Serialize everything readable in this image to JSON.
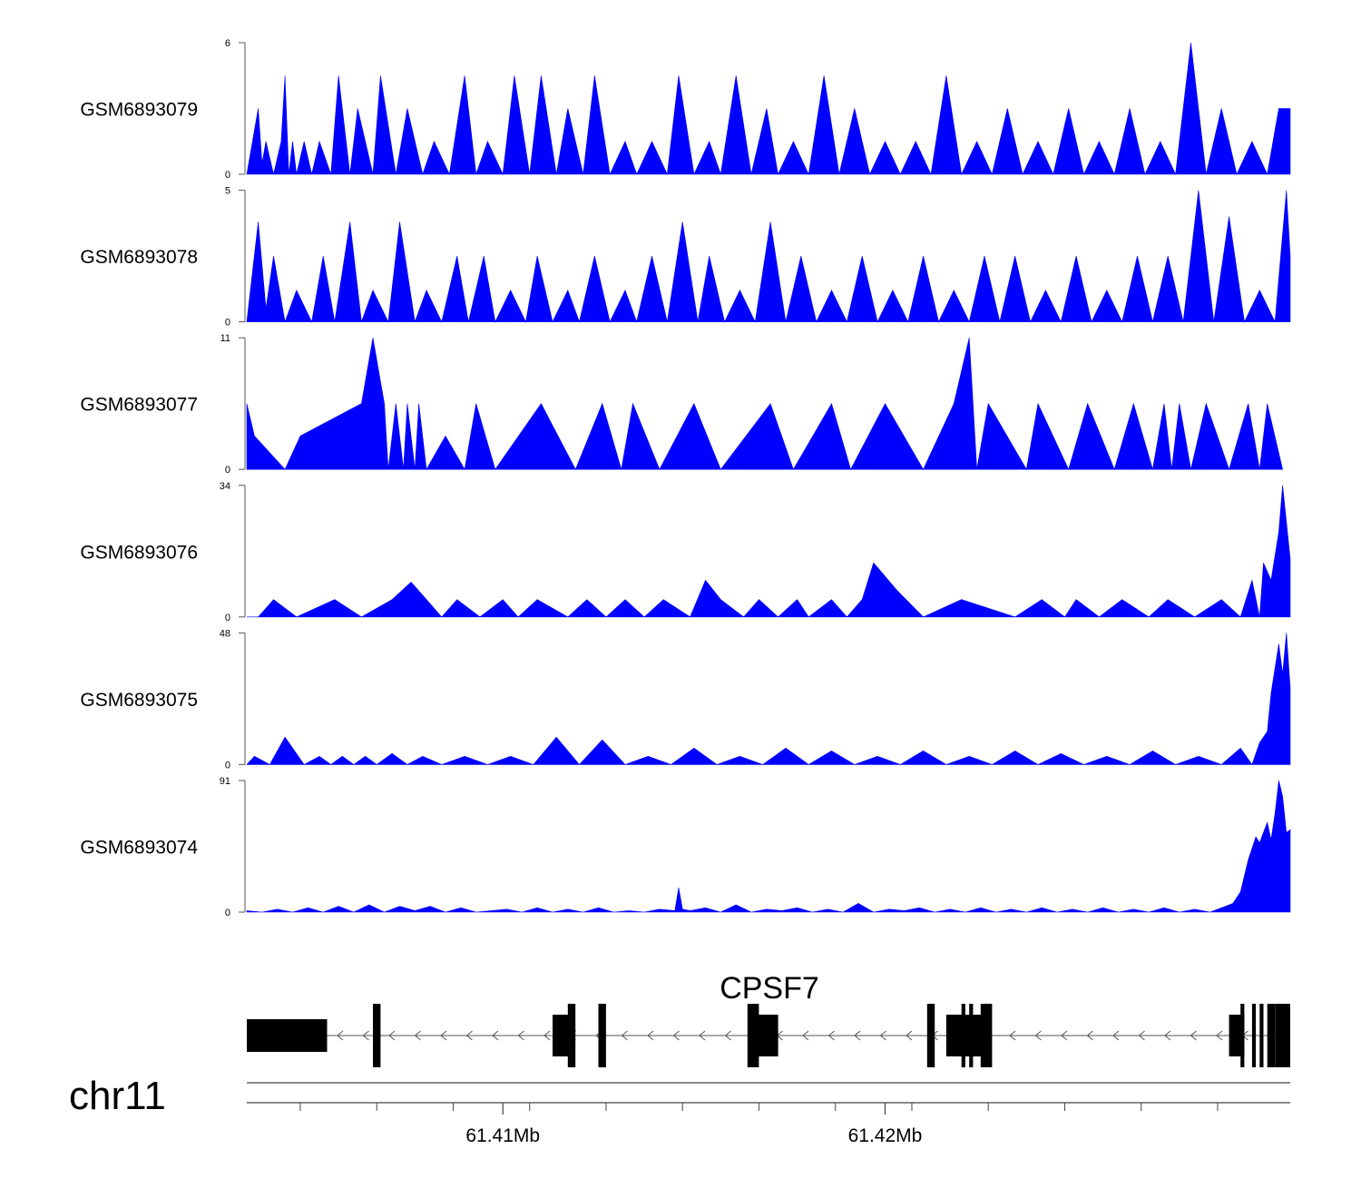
{
  "chart_data": {
    "type": "area",
    "chromosome": "chr11",
    "x_range_mb": [
      61.4033,
      61.4306
    ],
    "x_ticks_labeled": [
      {
        "value": 61.41,
        "label": "61.41Mb"
      },
      {
        "value": 61.42,
        "label": "61.42Mb"
      }
    ],
    "x_ticks_minor_mb": [
      61.4047,
      61.4067,
      61.4087,
      61.4107,
      61.4127,
      61.4147,
      61.4167,
      61.4187,
      61.4207,
      61.4227,
      61.4247,
      61.4267,
      61.4287
    ],
    "fill_color": "#0000ff",
    "tracks": [
      {
        "name": "GSM6893079",
        "ymax": 6,
        "ymin": 0,
        "x": [
          61.4033,
          61.4036,
          61.4037,
          61.4038,
          61.404,
          61.4042,
          61.4043,
          61.4044,
          61.4045,
          61.4046,
          61.4048,
          61.405,
          61.4052,
          61.4055,
          61.4057,
          61.406,
          61.4062,
          61.4066,
          61.4068,
          61.4072,
          61.4075,
          61.4079,
          61.4082,
          61.4086,
          61.409,
          61.4093,
          61.4096,
          61.41,
          61.4103,
          61.4107,
          61.411,
          61.4114,
          61.4117,
          61.4121,
          61.4124,
          61.4128,
          61.4132,
          61.4135,
          61.4139,
          61.4143,
          61.4146,
          61.415,
          61.4154,
          61.4157,
          61.4161,
          61.4165,
          61.4169,
          61.4172,
          61.4176,
          61.418,
          61.4184,
          61.4188,
          61.4192,
          61.4196,
          61.42,
          61.4204,
          61.4208,
          61.4212,
          61.4216,
          61.422,
          61.4224,
          61.4228,
          61.4232,
          61.4236,
          61.424,
          61.4244,
          61.4248,
          61.4252,
          61.4256,
          61.426,
          61.4264,
          61.4268,
          61.4272,
          61.4276,
          61.428,
          61.4284,
          61.4288,
          61.4292,
          61.4296,
          61.43,
          61.4303,
          61.4306
        ],
        "y": [
          0,
          3,
          0.5,
          1.5,
          0,
          1.5,
          4.5,
          0,
          1.5,
          0,
          1.5,
          0,
          1.5,
          0,
          4.5,
          0,
          3,
          0,
          4.5,
          0,
          3,
          0,
          1.5,
          0,
          4.5,
          0,
          1.5,
          0,
          4.5,
          0,
          4.5,
          0,
          3,
          0,
          4.5,
          0,
          1.5,
          0,
          1.5,
          0,
          4.5,
          0,
          1.5,
          0,
          4.5,
          0,
          3,
          0,
          1.5,
          0,
          4.5,
          0,
          3,
          0,
          1.5,
          0,
          1.5,
          0,
          4.5,
          0,
          1.5,
          0,
          3,
          0,
          1.5,
          0,
          3,
          0,
          1.5,
          0,
          3,
          0,
          1.5,
          0,
          6,
          0,
          3,
          0,
          1.5,
          0,
          3,
          3
        ]
      },
      {
        "name": "GSM6893078",
        "ymax": 5,
        "ymin": 0,
        "x": [
          61.4033,
          61.4036,
          61.4038,
          61.404,
          61.4043,
          61.4046,
          61.405,
          61.4053,
          61.4056,
          61.406,
          61.4063,
          61.4066,
          61.407,
          61.4073,
          61.4077,
          61.408,
          61.4084,
          61.4088,
          61.4091,
          61.4095,
          61.4098,
          61.4102,
          61.4106,
          61.4109,
          61.4113,
          61.4117,
          61.412,
          61.4124,
          61.4128,
          61.4132,
          61.4135,
          61.4139,
          61.4143,
          61.4147,
          61.4151,
          61.4154,
          61.4158,
          61.4162,
          61.4166,
          61.417,
          61.4174,
          61.4178,
          61.4182,
          61.4186,
          61.419,
          61.4194,
          61.4198,
          61.4202,
          61.4206,
          61.421,
          61.4214,
          61.4218,
          61.4222,
          61.4226,
          61.423,
          61.4234,
          61.4238,
          61.4242,
          61.4246,
          61.425,
          61.4254,
          61.4258,
          61.4262,
          61.4266,
          61.427,
          61.4274,
          61.4278,
          61.4282,
          61.4286,
          61.429,
          61.4294,
          61.4298,
          61.4302,
          61.4305,
          61.4306
        ],
        "y": [
          0,
          3.8,
          0.5,
          2.5,
          0,
          1.2,
          0,
          2.5,
          0,
          3.8,
          0,
          1.2,
          0,
          3.8,
          0,
          1.2,
          0,
          2.5,
          0,
          2.5,
          0,
          1.2,
          0,
          2.5,
          0,
          1.2,
          0,
          2.5,
          0,
          1.2,
          0,
          2.5,
          0,
          3.8,
          0,
          2.5,
          0,
          1.2,
          0,
          3.8,
          0,
          2.5,
          0,
          1.2,
          0,
          2.5,
          0,
          1.2,
          0,
          2.5,
          0,
          1.2,
          0,
          2.5,
          0,
          2.5,
          0,
          1.2,
          0,
          2.5,
          0,
          1.2,
          0,
          2.5,
          0,
          2.5,
          0,
          5,
          0,
          4,
          0,
          1.2,
          0,
          5,
          2.5
        ]
      },
      {
        "name": "GSM6893077",
        "ymax": 11,
        "ymin": 0,
        "x": [
          61.4033,
          61.4035,
          61.4043,
          61.4047,
          61.4063,
          61.4066,
          61.4069,
          61.407,
          61.4072,
          61.4074,
          61.4075,
          61.4077,
          61.4078,
          61.408,
          61.4085,
          61.409,
          61.4093,
          61.4098,
          61.411,
          61.4119,
          61.4126,
          61.4131,
          61.4134,
          61.4141,
          61.415,
          61.4157,
          61.417,
          61.4176,
          61.4186,
          61.4191,
          61.42,
          61.421,
          61.4218,
          61.4222,
          61.4224,
          61.4227,
          61.4237,
          61.424,
          61.4248,
          61.4253,
          61.426,
          61.4265,
          61.427,
          61.4273,
          61.4275,
          61.4277,
          61.428,
          61.4284,
          61.429,
          61.4295,
          61.4298,
          61.43,
          61.4304
        ],
        "y": [
          5.5,
          2.8,
          0,
          2.8,
          5.5,
          11,
          5.5,
          0,
          5.5,
          0,
          5.5,
          0,
          5.5,
          0,
          2.8,
          0,
          5.5,
          0,
          5.5,
          0,
          5.5,
          0,
          5.5,
          0,
          5.5,
          0,
          5.5,
          0,
          5.5,
          0,
          5.5,
          0,
          5.5,
          11,
          0,
          5.5,
          0,
          5.5,
          0,
          5.5,
          0,
          5.5,
          0,
          5.5,
          0,
          5.5,
          0,
          5.5,
          0,
          5.5,
          0,
          5.5,
          0
        ]
      },
      {
        "name": "GSM6893076",
        "ymax": 34,
        "ymin": 0,
        "x": [
          61.4033,
          61.4036,
          61.404,
          61.4046,
          61.4056,
          61.4063,
          61.4071,
          61.4076,
          61.408,
          61.4084,
          61.4088,
          61.4094,
          61.41,
          61.4104,
          61.4109,
          61.4117,
          61.4122,
          61.4127,
          61.4132,
          61.4137,
          61.4142,
          61.4149,
          61.4153,
          61.4157,
          61.4163,
          61.4167,
          61.4172,
          61.4177,
          61.418,
          61.4186,
          61.419,
          61.4194,
          61.4197,
          61.4203,
          61.421,
          61.422,
          61.4234,
          61.4241,
          61.4247,
          61.425,
          61.4256,
          61.4262,
          61.4269,
          61.4274,
          61.4281,
          61.4288,
          61.4293,
          61.4296,
          61.4298,
          61.4299,
          61.4301,
          61.4303,
          61.4304,
          61.4306
        ],
        "y": [
          0,
          0,
          4.5,
          0,
          4.5,
          0,
          4.5,
          9,
          4.5,
          0,
          4.5,
          0,
          4.5,
          0,
          4.5,
          0,
          4.5,
          0,
          4.5,
          0,
          4.5,
          0,
          9.5,
          4.5,
          0,
          4.5,
          0,
          4.5,
          0,
          4.5,
          0,
          4.5,
          14,
          7,
          0,
          4.5,
          0,
          4.5,
          0,
          4.5,
          0,
          4.5,
          0,
          4.5,
          0,
          4.5,
          0,
          9.5,
          0,
          14,
          9.5,
          22,
          34,
          15
        ]
      },
      {
        "name": "GSM6893075",
        "ymax": 48,
        "ymin": 0,
        "x": [
          61.4033,
          61.4035,
          61.4039,
          61.4043,
          61.4048,
          61.4052,
          61.4055,
          61.4058,
          61.4061,
          61.4064,
          61.4067,
          61.4071,
          61.4075,
          61.4079,
          61.4084,
          61.409,
          61.4096,
          61.4102,
          61.4108,
          61.4114,
          61.412,
          61.4126,
          61.4132,
          61.4138,
          61.4144,
          61.415,
          61.4156,
          61.4162,
          61.4168,
          61.4174,
          61.418,
          61.4186,
          61.4192,
          61.4198,
          61.4204,
          61.421,
          61.4216,
          61.4222,
          61.4228,
          61.4234,
          61.424,
          61.4246,
          61.4252,
          61.4258,
          61.4264,
          61.427,
          61.4276,
          61.4282,
          61.4288,
          61.4293,
          61.4296,
          61.4298,
          61.43,
          61.4301,
          61.4303,
          61.4304,
          61.4305,
          61.4306
        ],
        "y": [
          0,
          3,
          0,
          10,
          0,
          3,
          0,
          3,
          0,
          3,
          0,
          4,
          0,
          3,
          0,
          3,
          0,
          3,
          0,
          10,
          0,
          9,
          0,
          3,
          0,
          6,
          0,
          3,
          0,
          6,
          0,
          5,
          0,
          3,
          0,
          5,
          0,
          3,
          0,
          5,
          0,
          4,
          0,
          3,
          0,
          5,
          0,
          3,
          0,
          6,
          0,
          8,
          12,
          26,
          44,
          33,
          48,
          28
        ]
      },
      {
        "name": "GSM6893074",
        "ymax": 91,
        "ymin": 0,
        "x": [
          61.4033,
          61.4037,
          61.4041,
          61.4045,
          61.4049,
          61.4053,
          61.4057,
          61.4061,
          61.4065,
          61.4069,
          61.4073,
          61.4077,
          61.4081,
          61.4085,
          61.4089,
          61.4093,
          61.4097,
          61.4101,
          61.4105,
          61.4109,
          61.4113,
          61.4117,
          61.4121,
          61.4125,
          61.4129,
          61.4133,
          61.4137,
          61.4141,
          61.4145,
          61.4146,
          61.4147,
          61.4149,
          61.4153,
          61.4157,
          61.4161,
          61.4165,
          61.4169,
          61.4173,
          61.4177,
          61.4181,
          61.4185,
          61.4189,
          61.4193,
          61.4197,
          61.4201,
          61.4205,
          61.4209,
          61.4213,
          61.4217,
          61.4221,
          61.4225,
          61.4229,
          61.4233,
          61.4237,
          61.4241,
          61.4245,
          61.4249,
          61.4253,
          61.4257,
          61.4261,
          61.4265,
          61.4269,
          61.4273,
          61.4277,
          61.4281,
          61.4285,
          61.4289,
          61.4291,
          61.4293,
          61.4295,
          61.4297,
          61.4298,
          61.43,
          61.4301,
          61.4302,
          61.4303,
          61.4304,
          61.4305,
          61.4306
        ],
        "y": [
          1,
          0,
          2,
          0,
          3,
          0,
          4,
          0,
          5,
          0,
          4,
          1,
          4,
          0,
          3,
          0,
          1,
          2,
          0,
          3,
          0,
          2,
          0,
          3,
          0,
          1,
          0,
          2,
          1,
          17,
          2,
          1,
          3,
          0,
          5,
          0,
          2,
          1,
          3,
          0,
          2,
          0,
          6,
          0,
          2,
          1,
          3,
          0,
          2,
          0,
          3,
          0,
          2,
          0,
          3,
          0,
          2,
          0,
          3,
          0,
          2,
          0,
          3,
          0,
          2,
          0,
          4,
          6,
          14,
          36,
          52,
          48,
          62,
          50,
          68,
          91,
          80,
          55,
          57
        ]
      }
    ],
    "gene": {
      "name": "CPSF7",
      "strand": "-",
      "exons_mb": [
        [
          61.4033,
          61.4054
        ],
        [
          61.4066,
          61.4068
        ],
        [
          61.4113,
          61.4118
        ],
        [
          61.4117,
          61.4119
        ],
        [
          61.4125,
          61.4127
        ],
        [
          61.4164,
          61.4167
        ],
        [
          61.4166,
          61.4172
        ],
        [
          61.4211,
          61.4213
        ],
        [
          61.4216,
          61.4227
        ],
        [
          61.422,
          61.4221
        ],
        [
          61.4222,
          61.4223
        ],
        [
          61.4225,
          61.4228
        ],
        [
          61.429,
          61.4294
        ],
        [
          61.4293,
          61.4294
        ],
        [
          61.4296,
          61.4297
        ],
        [
          61.4298,
          61.4299
        ],
        [
          61.43,
          61.4302
        ],
        [
          61.4302,
          61.4306
        ]
      ],
      "intron_mb": [
        61.4033,
        61.4306
      ]
    }
  }
}
